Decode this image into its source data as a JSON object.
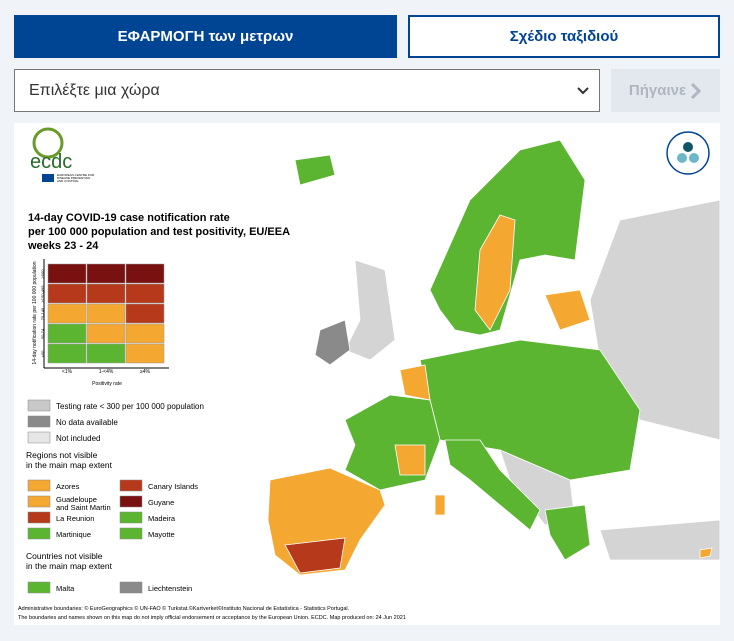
{
  "tabs": [
    "ΕΦΑΡΜΟΓΗ των μετρων",
    "Σχέδιο ταξιδιού"
  ],
  "country_select": {
    "placeholder": "Επιλέξτε μια χώρα",
    "button": "Πήγαινε"
  },
  "map": {
    "logo": {
      "name": "ecdc",
      "subtitle": [
        "EUROPEAN CENTRE FOR",
        "DISEASE PREVENTION",
        "AND CONTROL"
      ]
    },
    "title": [
      "14-day COVID-19 case notification rate",
      "per 100 000 population and test positivity, EU/EEA",
      "weeks 23 - 24"
    ],
    "matrix": {
      "y_axis": "14-day notification rate per 100 000 population",
      "y_labels": [
        "≥500",
        "≥150-499",
        "75-149",
        "50-74",
        "<50"
      ],
      "x_axis": "Positivity rate",
      "x_labels": [
        "<1%",
        "1-<4%",
        "≥4%"
      ]
    },
    "legend": [
      "Testing rate < 300 per 100 000 population",
      "No data available",
      "Not included"
    ],
    "regions_heading": [
      "Regions not visible",
      "in the main map extent"
    ],
    "regions": [
      "Azores",
      "Canary Islands",
      "Guadeloupe\nand Saint Martin",
      "Guyane",
      "La Reunion",
      "Madeira",
      "Martinique",
      "Mayotte"
    ],
    "countries_heading": [
      "Countries not visible",
      "in the main map extent"
    ],
    "countries": [
      "Malta",
      "Liechtenstein"
    ],
    "footer": [
      "Administrative boundaries: © EuroGeographics © UN-FAO © Turkstat.©Kartverket©Instituto Nacional de Estatística - Statistics Portugal.",
      "The boundaries and names shown on this map do not imply official endorsement or acceptance by the European Union. ECDC. Map produced on: 24 Jun 2021"
    ]
  }
}
